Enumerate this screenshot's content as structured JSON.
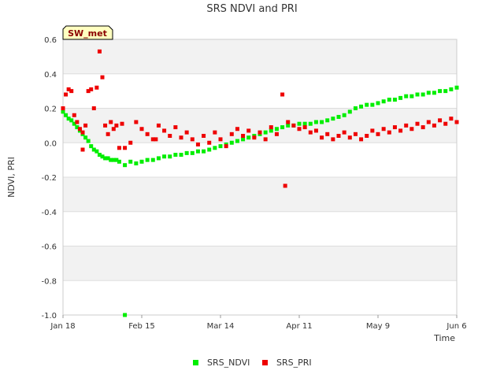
{
  "chart_data": {
    "type": "scatter",
    "title": "SRS NDVI and PRI",
    "xlabel": "Time",
    "ylabel": "NDVI, PRI",
    "badge": "SW_met",
    "ylim": [
      -1.0,
      0.6
    ],
    "y_ticks": [
      -1.0,
      -0.8,
      -0.6,
      -0.4,
      -0.2,
      0.0,
      0.2,
      0.4,
      0.6
    ],
    "y_tick_labels": [
      "-1.0",
      "-0.8",
      "-0.6",
      "-0.4",
      "-0.2",
      "0.0",
      "0.2",
      "0.4",
      "0.6"
    ],
    "xlim": [
      0,
      140
    ],
    "x_ticks": [
      0,
      28,
      56,
      84,
      112,
      140
    ],
    "x_tick_labels": [
      "Jan 18",
      "Feb 15",
      "Mar 14",
      "Apr 11",
      "May 9",
      "Jun 6"
    ],
    "legend_position": "bottom-center",
    "series": [
      {
        "name": "SRS_NDVI",
        "color": "#00ee00",
        "points": [
          [
            0,
            0.18
          ],
          [
            1,
            0.16
          ],
          [
            2,
            0.14
          ],
          [
            3,
            0.13
          ],
          [
            4,
            0.11
          ],
          [
            5,
            0.09
          ],
          [
            6,
            0.07
          ],
          [
            7,
            0.05
          ],
          [
            8,
            0.03
          ],
          [
            9,
            0.01
          ],
          [
            10,
            -0.02
          ],
          [
            11,
            -0.04
          ],
          [
            12,
            -0.05
          ],
          [
            13,
            -0.07
          ],
          [
            14,
            -0.08
          ],
          [
            15,
            -0.09
          ],
          [
            16,
            -0.09
          ],
          [
            17,
            -0.1
          ],
          [
            18,
            -0.1
          ],
          [
            19,
            -0.1
          ],
          [
            20,
            -0.11
          ],
          [
            22,
            -0.13
          ],
          [
            24,
            -0.11
          ],
          [
            26,
            -0.12
          ],
          [
            28,
            -0.11
          ],
          [
            30,
            -0.1
          ],
          [
            32,
            -0.1
          ],
          [
            34,
            -0.09
          ],
          [
            36,
            -0.08
          ],
          [
            38,
            -0.08
          ],
          [
            40,
            -0.07
          ],
          [
            42,
            -0.07
          ],
          [
            44,
            -0.06
          ],
          [
            46,
            -0.06
          ],
          [
            48,
            -0.05
          ],
          [
            50,
            -0.05
          ],
          [
            52,
            -0.04
          ],
          [
            54,
            -0.03
          ],
          [
            56,
            -0.02
          ],
          [
            58,
            -0.01
          ],
          [
            60,
            0.0
          ],
          [
            62,
            0.01
          ],
          [
            64,
            0.02
          ],
          [
            66,
            0.03
          ],
          [
            68,
            0.04
          ],
          [
            70,
            0.05
          ],
          [
            72,
            0.06
          ],
          [
            74,
            0.07
          ],
          [
            76,
            0.08
          ],
          [
            78,
            0.09
          ],
          [
            80,
            0.1
          ],
          [
            82,
            0.1
          ],
          [
            84,
            0.11
          ],
          [
            86,
            0.11
          ],
          [
            88,
            0.11
          ],
          [
            90,
            0.12
          ],
          [
            92,
            0.12
          ],
          [
            94,
            0.13
          ],
          [
            96,
            0.14
          ],
          [
            98,
            0.15
          ],
          [
            100,
            0.16
          ],
          [
            102,
            0.18
          ],
          [
            104,
            0.2
          ],
          [
            106,
            0.21
          ],
          [
            108,
            0.22
          ],
          [
            110,
            0.22
          ],
          [
            112,
            0.23
          ],
          [
            114,
            0.24
          ],
          [
            116,
            0.25
          ],
          [
            118,
            0.25
          ],
          [
            120,
            0.26
          ],
          [
            122,
            0.27
          ],
          [
            124,
            0.27
          ],
          [
            126,
            0.28
          ],
          [
            128,
            0.28
          ],
          [
            130,
            0.29
          ],
          [
            132,
            0.29
          ],
          [
            134,
            0.3
          ],
          [
            136,
            0.3
          ],
          [
            138,
            0.31
          ],
          [
            140,
            0.32
          ],
          [
            22,
            -1.0
          ]
        ]
      },
      {
        "name": "SRS_PRI",
        "color": "#ee0000",
        "points": [
          [
            0,
            0.2
          ],
          [
            1,
            0.28
          ],
          [
            2,
            0.31
          ],
          [
            3,
            0.3
          ],
          [
            4,
            0.16
          ],
          [
            5,
            0.12
          ],
          [
            6,
            0.08
          ],
          [
            7,
            0.06
          ],
          [
            8,
            0.1
          ],
          [
            9,
            0.3
          ],
          [
            10,
            0.31
          ],
          [
            11,
            0.2
          ],
          [
            12,
            0.32
          ],
          [
            13,
            0.53
          ],
          [
            14,
            0.38
          ],
          [
            15,
            0.1
          ],
          [
            16,
            0.05
          ],
          [
            17,
            0.12
          ],
          [
            18,
            0.08
          ],
          [
            19,
            0.1
          ],
          [
            20,
            -0.03
          ],
          [
            21,
            0.11
          ],
          [
            22,
            -0.03
          ],
          [
            24,
            0.0
          ],
          [
            26,
            0.12
          ],
          [
            28,
            0.08
          ],
          [
            30,
            0.05
          ],
          [
            32,
            0.02
          ],
          [
            34,
            0.1
          ],
          [
            36,
            0.07
          ],
          [
            38,
            0.04
          ],
          [
            40,
            0.09
          ],
          [
            42,
            0.03
          ],
          [
            44,
            0.06
          ],
          [
            46,
            0.02
          ],
          [
            48,
            -0.01
          ],
          [
            50,
            0.04
          ],
          [
            52,
            0.0
          ],
          [
            54,
            0.06
          ],
          [
            56,
            0.02
          ],
          [
            58,
            -0.02
          ],
          [
            60,
            0.05
          ],
          [
            62,
            0.08
          ],
          [
            64,
            0.04
          ],
          [
            66,
            0.07
          ],
          [
            68,
            0.03
          ],
          [
            70,
            0.06
          ],
          [
            72,
            0.02
          ],
          [
            74,
            0.09
          ],
          [
            76,
            0.05
          ],
          [
            78,
            0.28
          ],
          [
            79,
            -0.25
          ],
          [
            80,
            0.12
          ],
          [
            82,
            0.1
          ],
          [
            84,
            0.08
          ],
          [
            86,
            0.09
          ],
          [
            88,
            0.06
          ],
          [
            90,
            0.07
          ],
          [
            92,
            0.03
          ],
          [
            94,
            0.05
          ],
          [
            96,
            0.02
          ],
          [
            98,
            0.04
          ],
          [
            100,
            0.06
          ],
          [
            102,
            0.03
          ],
          [
            104,
            0.05
          ],
          [
            106,
            0.02
          ],
          [
            108,
            0.04
          ],
          [
            110,
            0.07
          ],
          [
            112,
            0.05
          ],
          [
            114,
            0.08
          ],
          [
            116,
            0.06
          ],
          [
            118,
            0.09
          ],
          [
            120,
            0.07
          ],
          [
            122,
            0.1
          ],
          [
            124,
            0.08
          ],
          [
            126,
            0.11
          ],
          [
            128,
            0.09
          ],
          [
            130,
            0.12
          ],
          [
            132,
            0.1
          ],
          [
            134,
            0.13
          ],
          [
            136,
            0.11
          ],
          [
            138,
            0.14
          ],
          [
            140,
            0.12
          ],
          [
            7,
            -0.04
          ],
          [
            33,
            0.02
          ]
        ]
      }
    ]
  }
}
